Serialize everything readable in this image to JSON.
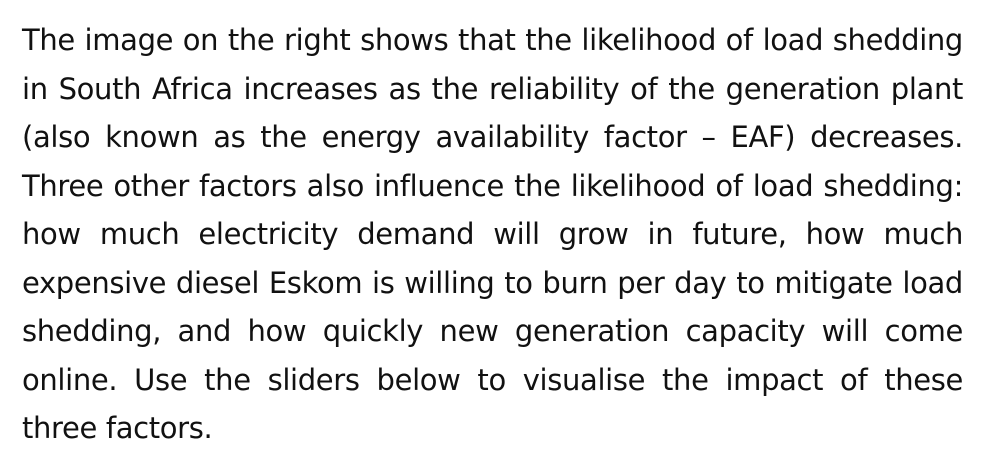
{
  "paragraph": {
    "text": "The image on the right shows that the likelihood of load shedding in South Africa increases as the reliability of the generation plant (also known as the energy availability factor – EAF) decreases. Three other factors also influence the likelihood of load shedding: how much electricity demand will grow in future, how much expensive diesel Eskom is willing to burn per day to mitigate load shedding, and how quickly new generation capacity will come online. Use the sliders below to visualise the impact of these three factors."
  }
}
